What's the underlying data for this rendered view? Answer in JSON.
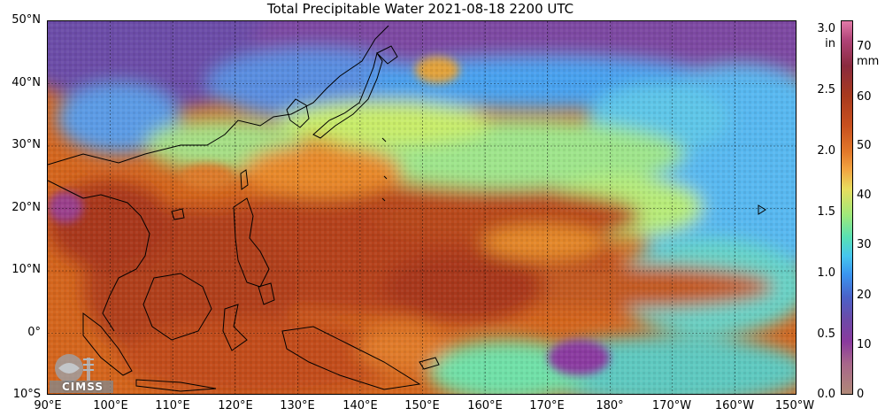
{
  "title": "Total Precipitable Water  2021-08-18 2200 UTC",
  "lat_labels": [
    "50°N",
    "40°N",
    "30°N",
    "20°N",
    "10°N",
    "0°",
    "10°S"
  ],
  "lon_labels": [
    "90°E",
    "100°E",
    "110°E",
    "120°E",
    "130°E",
    "140°E",
    "150°E",
    "160°E",
    "170°E",
    "180°",
    "170°W",
    "160°W",
    "150°W"
  ],
  "colorbar": {
    "unit_in": "in",
    "unit_mm": "mm",
    "ticks_in": [
      "3.0",
      "2.5",
      "2.0",
      "1.5",
      "1.0",
      "0.5",
      "0.0"
    ],
    "ticks_mm": [
      "70",
      "60",
      "50",
      "40",
      "30",
      "20",
      "10",
      "0"
    ]
  },
  "logo_text": "CIMSS"
}
